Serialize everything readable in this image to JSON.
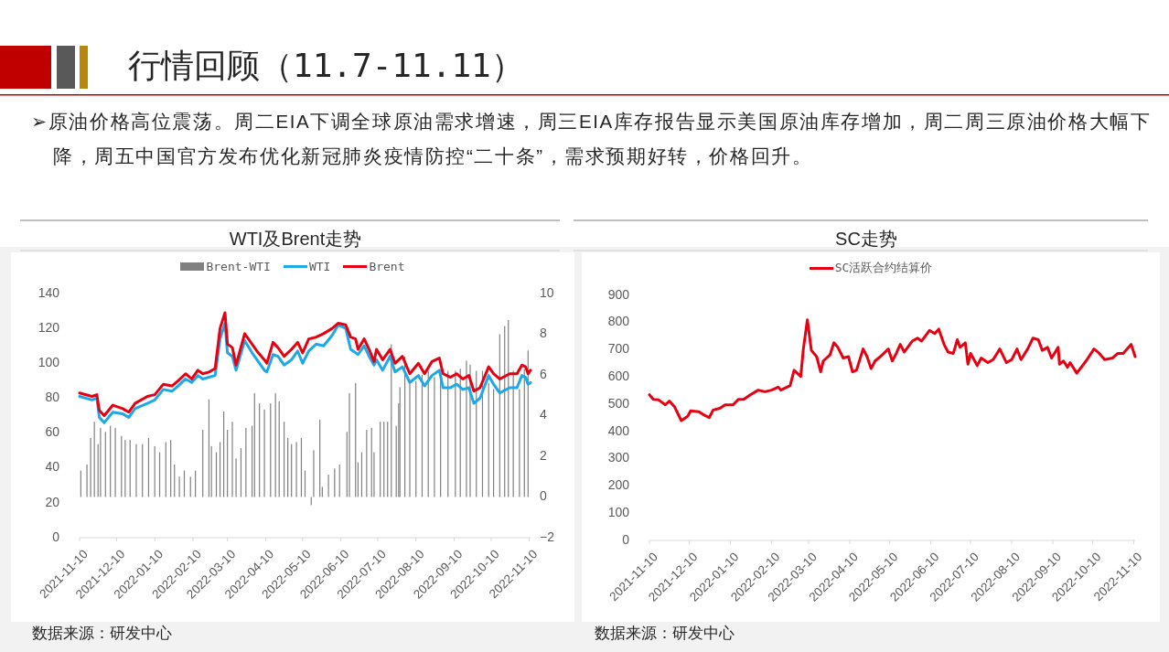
{
  "chart_data": [
    {
      "type": "line",
      "title": "WTI及Brent走势",
      "annotations": [
        "行情回顾（11.7-11.11）",
        "➢原油价格高位震荡。周二EIA下调全球原油需求增速，周三EIA库存报告显示美国原油库存增加，周二周三原油价格大幅下降，周五中国官方发布优化新冠肺炎疫情防控“二十条”，需求预期好转，价格回升。",
        "数据来源：研发中心"
      ],
      "legend": "top",
      "xlim": [
        "2021-11-10",
        "2022-11-11"
      ],
      "xticks": [
        "2021-11-10",
        "2021-12-10",
        "2022-01-10",
        "2022-02-10",
        "2022-03-10",
        "2022-04-10",
        "2022-05-10",
        "2022-06-10",
        "2022-07-10",
        "2022-08-10",
        "2022-09-10",
        "2022-10-10",
        "2022-11-10"
      ],
      "ylim": [
        0,
        140
      ],
      "yticks": [
        0,
        20,
        40,
        60,
        80,
        100,
        120,
        140
      ],
      "y2lim": [
        -2,
        10
      ],
      "y2ticks": [
        {
          "value": -2,
          "label": "−2"
        },
        0,
        2,
        4,
        6,
        8,
        10
      ],
      "series": [
        {
          "name": "Brent-WTI",
          "type": "bar",
          "axis": "y2",
          "color": "#808080",
          "x": [
            "2021-11-11",
            "2021-11-16",
            "2021-11-19",
            "2021-11-22",
            "2021-11-25",
            "2021-11-27",
            "2021-12-01",
            "2021-12-05",
            "2021-12-09",
            "2021-12-14",
            "2021-12-17",
            "2021-12-21",
            "2021-12-26",
            "2021-12-31",
            "2022-01-05",
            "2022-01-10",
            "2022-01-14",
            "2022-01-19",
            "2022-01-23",
            "2022-01-26",
            "2022-01-30",
            "2022-02-03",
            "2022-02-08",
            "2022-02-12",
            "2022-02-18",
            "2022-02-23",
            "2022-02-25",
            "2022-03-01",
            "2022-03-04",
            "2022-03-07",
            "2022-03-10",
            "2022-03-14",
            "2022-03-17",
            "2022-03-21",
            "2022-03-25",
            "2022-03-30",
            "2022-04-01",
            "2022-04-05",
            "2022-04-09",
            "2022-04-14",
            "2022-04-18",
            "2022-04-21",
            "2022-04-25",
            "2022-04-28",
            "2022-05-01",
            "2022-05-05",
            "2022-05-09",
            "2022-05-12",
            "2022-05-17",
            "2022-05-19",
            "2022-05-24",
            "2022-05-26",
            "2022-05-31",
            "2022-06-05",
            "2022-06-09",
            "2022-06-15",
            "2022-06-17",
            "2022-06-22",
            "2022-06-24",
            "2022-06-27",
            "2022-07-01",
            "2022-07-05",
            "2022-07-07",
            "2022-07-12",
            "2022-07-15",
            "2022-07-18",
            "2022-07-21",
            "2022-07-25",
            "2022-07-27",
            "2022-07-28",
            "2022-08-01",
            "2022-08-05",
            "2022-08-10",
            "2022-08-15",
            "2022-08-20",
            "2022-08-25",
            "2022-08-30",
            "2022-09-05",
            "2022-09-11",
            "2022-09-15",
            "2022-09-20",
            "2022-09-23",
            "2022-09-28",
            "2022-10-03",
            "2022-10-08",
            "2022-10-12",
            "2022-10-17",
            "2022-10-21",
            "2022-10-24",
            "2022-10-28",
            "2022-11-02",
            "2022-11-06",
            "2022-11-09"
          ],
          "values": [
            1.3,
            1.6,
            2.9,
            3.7,
            2.6,
            3.4,
            3.2,
            3.5,
            3.4,
            3.0,
            2.8,
            2.8,
            2.6,
            2.6,
            2.9,
            2.5,
            2.2,
            2.7,
            2.8,
            1.6,
            1.0,
            1.3,
            1.0,
            1.3,
            3.3,
            4.8,
            2.5,
            2.2,
            2.7,
            4.2,
            3.3,
            3.7,
            1.9,
            2.4,
            3.4,
            3.5,
            5.1,
            4.6,
            4.3,
            4.6,
            5.1,
            4.7,
            3.7,
            2.9,
            2.6,
            2.7,
            2.9,
            1.3,
            -0.4,
            2.3,
            3.8,
            0.5,
            1.1,
            1.4,
            1.6,
            3.2,
            5.1,
            5.6,
            1.7,
            2.2,
            3.3,
            3.4,
            2.2,
            3.7,
            3.7,
            3.7,
            7.5,
            3.5,
            4.6,
            5.4,
            6.9,
            5.6,
            5.7,
            6.0,
            6.2,
            5.9,
            6.2,
            6.2,
            6.2,
            6.3,
            6.7,
            6.5,
            6.2,
            6.2,
            5.6,
            5.3,
            8.0,
            8.4,
            8.7,
            6.2,
            5.3,
            6.3,
            7.2
          ]
        },
        {
          "name": "WTI",
          "color": "#1ea8e8",
          "x": [
            "2021-11-10",
            "2021-11-20",
            "2021-11-24",
            "2021-11-26",
            "2021-11-30",
            "2021-12-07",
            "2021-12-15",
            "2021-12-20",
            "2021-12-25",
            "2022-01-04",
            "2022-01-10",
            "2022-01-17",
            "2022-01-24",
            "2022-01-29",
            "2022-02-04",
            "2022-02-09",
            "2022-02-14",
            "2022-02-18",
            "2022-02-23",
            "2022-02-28",
            "2022-03-04",
            "2022-03-08",
            "2022-03-10",
            "2022-03-14",
            "2022-03-17",
            "2022-03-24",
            "2022-03-30",
            "2022-04-04",
            "2022-04-09",
            "2022-04-11",
            "2022-04-16",
            "2022-04-20",
            "2022-04-25",
            "2022-05-01",
            "2022-05-06",
            "2022-05-10",
            "2022-05-15",
            "2022-05-21",
            "2022-05-27",
            "2022-06-03",
            "2022-06-08",
            "2022-06-14",
            "2022-06-18",
            "2022-06-22",
            "2022-06-24",
            "2022-06-29",
            "2022-07-03",
            "2022-07-07",
            "2022-07-09",
            "2022-07-14",
            "2022-07-20",
            "2022-07-24",
            "2022-07-30",
            "2022-08-05",
            "2022-08-12",
            "2022-08-17",
            "2022-08-23",
            "2022-08-29",
            "2022-09-01",
            "2022-09-07",
            "2022-09-12",
            "2022-09-17",
            "2022-09-22",
            "2022-09-26",
            "2022-10-01",
            "2022-10-08",
            "2022-10-12",
            "2022-10-17",
            "2022-10-25",
            "2022-10-31",
            "2022-11-04",
            "2022-11-07",
            "2022-11-09",
            "2022-11-11"
          ],
          "values": [
            81,
            79,
            80,
            69,
            66,
            72,
            71,
            69,
            74,
            77,
            79,
            85,
            84,
            87,
            91,
            89,
            93,
            91,
            92,
            93,
            114,
            123,
            106,
            104,
            96,
            113,
            106,
            101,
            96,
            95,
            105,
            104,
            99,
            102,
            107,
            100,
            107,
            111,
            110,
            116,
            122,
            120,
            108,
            106,
            105,
            110,
            104,
            99,
            102,
            96,
            104,
            95,
            98,
            89,
            93,
            87,
            93,
            96,
            86,
            86,
            88,
            85,
            86,
            77,
            80,
            93,
            88,
            83,
            86,
            86,
            93,
            92,
            88,
            89
          ]
        },
        {
          "name": "Brent",
          "color": "#e60012",
          "x": [
            "2021-11-10",
            "2021-11-20",
            "2021-11-24",
            "2021-11-26",
            "2021-11-30",
            "2021-12-07",
            "2021-12-15",
            "2021-12-20",
            "2021-12-25",
            "2022-01-04",
            "2022-01-10",
            "2022-01-17",
            "2022-01-24",
            "2022-01-29",
            "2022-02-04",
            "2022-02-09",
            "2022-02-14",
            "2022-02-18",
            "2022-02-23",
            "2022-02-28",
            "2022-03-04",
            "2022-03-08",
            "2022-03-10",
            "2022-03-14",
            "2022-03-17",
            "2022-03-24",
            "2022-03-30",
            "2022-04-04",
            "2022-04-09",
            "2022-04-11",
            "2022-04-16",
            "2022-04-20",
            "2022-04-25",
            "2022-05-01",
            "2022-05-06",
            "2022-05-10",
            "2022-05-15",
            "2022-05-21",
            "2022-05-27",
            "2022-06-03",
            "2022-06-08",
            "2022-06-14",
            "2022-06-18",
            "2022-06-22",
            "2022-06-24",
            "2022-06-29",
            "2022-07-03",
            "2022-07-07",
            "2022-07-09",
            "2022-07-14",
            "2022-07-20",
            "2022-07-24",
            "2022-07-30",
            "2022-08-05",
            "2022-08-12",
            "2022-08-17",
            "2022-08-23",
            "2022-08-29",
            "2022-09-01",
            "2022-09-07",
            "2022-09-12",
            "2022-09-17",
            "2022-09-22",
            "2022-09-26",
            "2022-10-01",
            "2022-10-08",
            "2022-10-12",
            "2022-10-17",
            "2022-10-25",
            "2022-10-31",
            "2022-11-04",
            "2022-11-07",
            "2022-11-09",
            "2022-11-11"
          ],
          "values": [
            83,
            81,
            82,
            73,
            70,
            76,
            74,
            72,
            77,
            81,
            82,
            88,
            87,
            90,
            94,
            91,
            96,
            94,
            95,
            97,
            120,
            129,
            111,
            109,
            99,
            117,
            111,
            106,
            102,
            100,
            112,
            109,
            104,
            108,
            112,
            106,
            114,
            115,
            117,
            120,
            123,
            122,
            115,
            114,
            108,
            114,
            108,
            101,
            108,
            102,
            108,
            100,
            104,
            94,
            100,
            94,
            101,
            103,
            94,
            92,
            94,
            91,
            93,
            84,
            86,
            98,
            94,
            91,
            94,
            94,
            99,
            98,
            94,
            96
          ]
        }
      ]
    },
    {
      "type": "line",
      "title": "SC走势",
      "annotations": [
        "数据来源：研发中心"
      ],
      "legend": "top",
      "xlim": [
        "2021-11-10",
        "2022-11-11"
      ],
      "xticks": [
        "2021-11-10",
        "2021-12-10",
        "2022-01-10",
        "2022-02-10",
        "2022-03-10",
        "2022-04-10",
        "2022-05-10",
        "2022-06-10",
        "2022-07-10",
        "2022-08-10",
        "2022-09-10",
        "2022-10-10",
        "2022-11-10"
      ],
      "ylim": [
        0,
        900
      ],
      "yticks": [
        0,
        100,
        200,
        300,
        400,
        500,
        600,
        700,
        800,
        900
      ],
      "series": [
        {
          "name": "SC活跃合约结算价",
          "color": "#e60012",
          "x": [
            "2021-11-10",
            "2021-11-13",
            "2021-11-17",
            "2021-11-22",
            "2021-11-25",
            "2021-11-29",
            "2021-12-04",
            "2021-12-09",
            "2021-12-11",
            "2021-12-17",
            "2021-12-20",
            "2021-12-25",
            "2021-12-28",
            "2022-01-02",
            "2022-01-06",
            "2022-01-12",
            "2022-01-16",
            "2022-01-20",
            "2022-01-25",
            "2022-01-31",
            "2022-02-05",
            "2022-02-10",
            "2022-02-15",
            "2022-02-17",
            "2022-02-24",
            "2022-02-27",
            "2022-03-04",
            "2022-03-06",
            "2022-03-09",
            "2022-03-12",
            "2022-03-16",
            "2022-03-19",
            "2022-03-21",
            "2022-03-26",
            "2022-03-29",
            "2022-04-01",
            "2022-04-05",
            "2022-04-09",
            "2022-04-12",
            "2022-04-15",
            "2022-04-20",
            "2022-04-23",
            "2022-04-26",
            "2022-04-29",
            "2022-05-03",
            "2022-05-09",
            "2022-05-12",
            "2022-05-15",
            "2022-05-18",
            "2022-05-21",
            "2022-05-27",
            "2022-05-31",
            "2022-06-03",
            "2022-06-09",
            "2022-06-13",
            "2022-06-16",
            "2022-06-20",
            "2022-06-23",
            "2022-06-27",
            "2022-06-30",
            "2022-07-02",
            "2022-07-06",
            "2022-07-08",
            "2022-07-10",
            "2022-07-15",
            "2022-07-18",
            "2022-07-23",
            "2022-07-27",
            "2022-08-01",
            "2022-08-06",
            "2022-08-10",
            "2022-08-14",
            "2022-08-17",
            "2022-08-22",
            "2022-08-26",
            "2022-08-30",
            "2022-09-02",
            "2022-09-06",
            "2022-09-09",
            "2022-09-14",
            "2022-09-15",
            "2022-09-18",
            "2022-09-21",
            "2022-09-23",
            "2022-09-28",
            "2022-10-05",
            "2022-10-11",
            "2022-10-15",
            "2022-10-19",
            "2022-10-25",
            "2022-10-29",
            "2022-11-02",
            "2022-11-08",
            "2022-11-11"
          ],
          "values": [
            535,
            518,
            516,
            498,
            512,
            490,
            440,
            457,
            476,
            473,
            464,
            451,
            479,
            485,
            498,
            498,
            518,
            518,
            535,
            552,
            546,
            552,
            563,
            552,
            569,
            625,
            602,
            704,
            810,
            698,
            675,
            619,
            659,
            681,
            726,
            709,
            670,
            675,
            619,
            625,
            703,
            675,
            631,
            659,
            675,
            703,
            659,
            687,
            720,
            692,
            732,
            743,
            732,
            771,
            760,
            776,
            720,
            692,
            687,
            737,
            709,
            726,
            647,
            687,
            642,
            670,
            653,
            664,
            703,
            653,
            664,
            703,
            664,
            703,
            743,
            737,
            698,
            709,
            670,
            709,
            647,
            659,
            636,
            653,
            614,
            659,
            703,
            687,
            664,
            670,
            687,
            687,
            720,
            675
          ]
        }
      ]
    }
  ]
}
